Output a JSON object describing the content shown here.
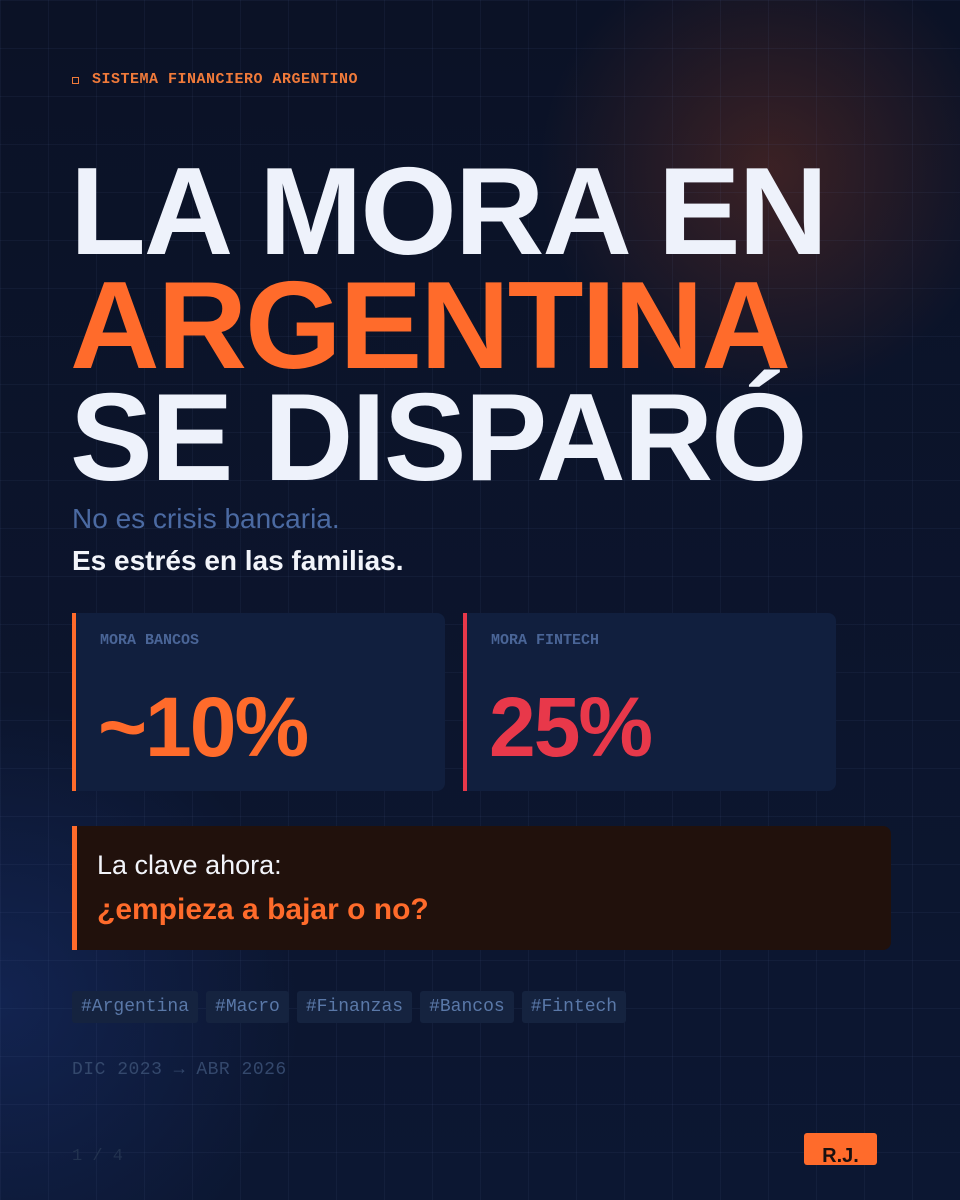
{
  "eyebrow": "SISTEMA FINANCIERO ARGENTINO",
  "title": {
    "lines": [
      "LA MORA EN",
      "ARGENTINA",
      "SE DISPARÓ"
    ]
  },
  "subtitle": {
    "lines": [
      "No es crisis bancaria.",
      "Es estrés en las familias."
    ]
  },
  "stats": [
    {
      "label": "MORA BANCOS",
      "value": "~10%"
    },
    {
      "label": "MORA FINTECH",
      "value": "25%"
    }
  ],
  "callout": {
    "lines": [
      "La clave ahora:",
      "¿empieza a bajar o no?"
    ]
  },
  "tags": [
    "#Argentina",
    "#Macro",
    "#Finanzas",
    "#Bancos",
    "#Fintech"
  ],
  "date_range": "DIC 2023 → ABR 2026",
  "page": "1 / 4",
  "logo": "R.J."
}
